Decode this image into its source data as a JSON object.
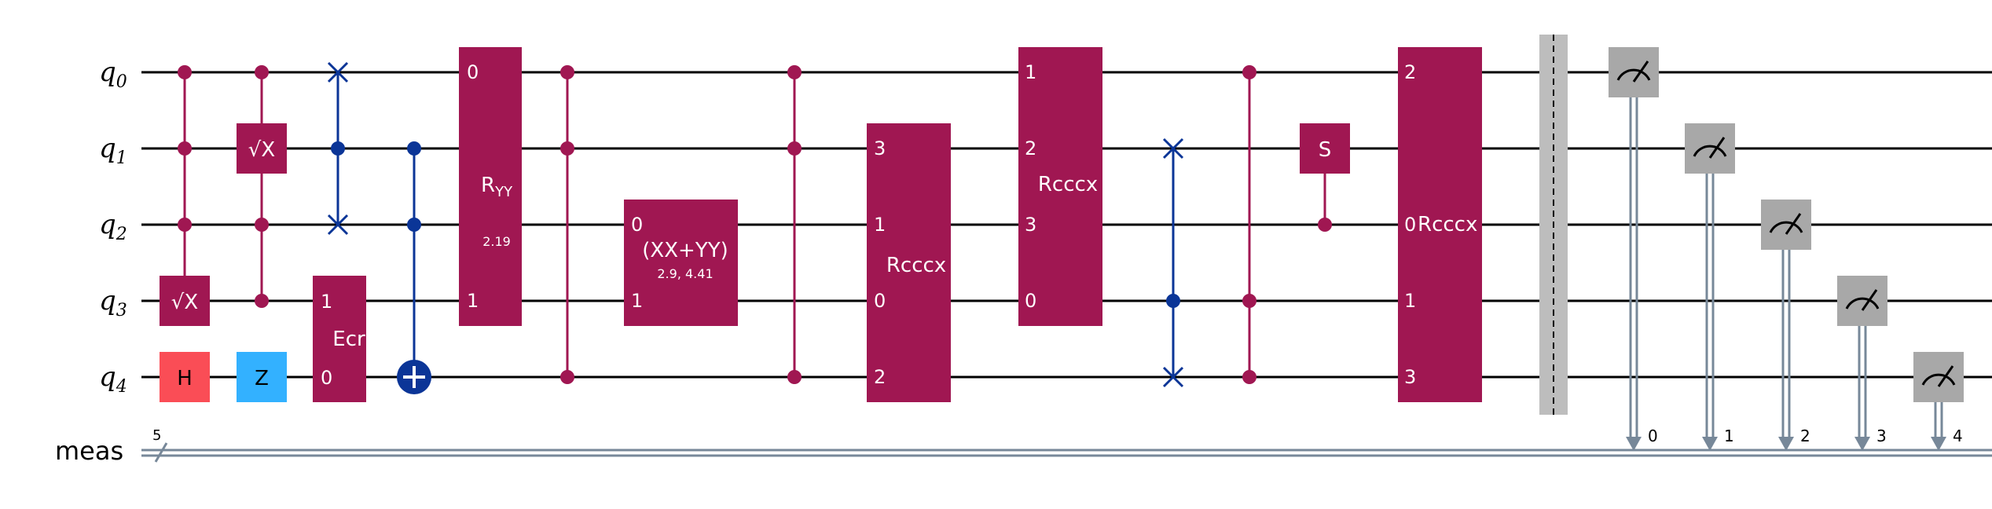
{
  "circuit": {
    "qubit_base": "q",
    "qubits": [
      "0",
      "1",
      "2",
      "3",
      "4"
    ],
    "creg": {
      "name": "meas",
      "size": "5"
    },
    "colors": {
      "purple": "#a01752",
      "blue": "#0b3597",
      "h_gate": "#fa4d56",
      "z_gate": "#33b1ff",
      "measure": "#a8a8a8",
      "classical": "#778899",
      "barrier": "#bdbdbd"
    },
    "gates": {
      "sx_q3": "√X",
      "h_q4": "H",
      "sx_q1": "√X",
      "z_q4": "Z",
      "ecr": {
        "label": "Ecr",
        "ports": [
          "1",
          "0"
        ]
      },
      "ryy": {
        "label": "R",
        "sub": "YY",
        "param": "2.19",
        "ports": [
          "0",
          "1"
        ]
      },
      "xxyy": {
        "label": "(XX+YY)",
        "param": "2.9, 4.41",
        "ports": [
          "0",
          "1"
        ]
      },
      "rcccx1": {
        "label": "Rcccx",
        "ports": [
          "3",
          "1",
          "0",
          "2"
        ]
      },
      "rcccx2": {
        "label": "Rcccx",
        "ports": [
          "1",
          "2",
          "3",
          "0"
        ]
      },
      "s_q1": "S",
      "rcccx3": {
        "label": "Rcccx",
        "ports": [
          "2",
          "0",
          "1",
          "3"
        ]
      }
    },
    "measure_bits": [
      "0",
      "1",
      "2",
      "3",
      "4"
    ]
  }
}
